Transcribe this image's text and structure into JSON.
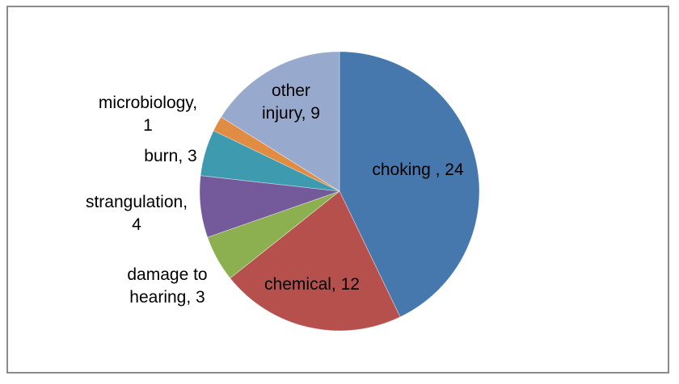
{
  "frame": {
    "background_color": "#ffffff",
    "border_color": "#8b8b8b"
  },
  "chart_data": {
    "type": "pie",
    "total": 56,
    "legend": "none",
    "start_angle_deg": 0,
    "direction": "clockwise",
    "slices": [
      {
        "label": "choking",
        "value": 24,
        "color": "#4677AD",
        "label_position": "inside",
        "lines": [
          "choking , 24"
        ]
      },
      {
        "label": "chemical",
        "value": 12,
        "color": "#B5504D",
        "label_position": "inside",
        "lines": [
          "chemical, 12"
        ]
      },
      {
        "label": "damage to hearing",
        "value": 3,
        "color": "#8CAF4F",
        "label_position": "outside",
        "lines": [
          "damage to",
          "hearing, 3"
        ]
      },
      {
        "label": "strangulation",
        "value": 4,
        "color": "#74599B",
        "label_position": "outside",
        "lines": [
          "strangulation,",
          "4"
        ]
      },
      {
        "label": "burn",
        "value": 3,
        "color": "#3D9AAF",
        "label_position": "outside",
        "lines": [
          "burn, 3"
        ]
      },
      {
        "label": "microbiology",
        "value": 1,
        "color": "#E08C42",
        "label_position": "outside",
        "lines": [
          "microbiology,",
          "1"
        ]
      },
      {
        "label": "other injury",
        "value": 9,
        "color": "#97AACE",
        "label_position": "inside",
        "lines": [
          "other",
          "injury, 9"
        ]
      }
    ]
  }
}
